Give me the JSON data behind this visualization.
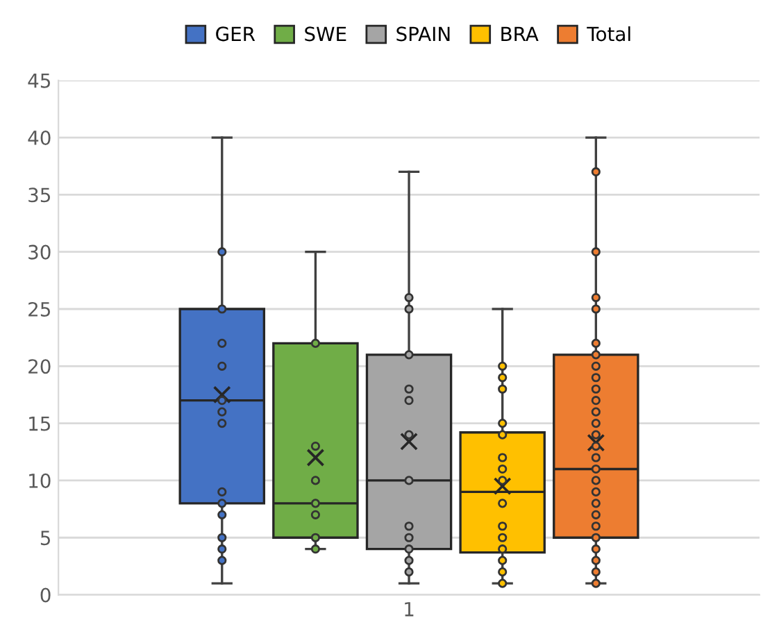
{
  "chart_data": {
    "type": "box",
    "categories": [
      "1"
    ],
    "ylim": [
      0,
      45
    ],
    "yticks": [
      0,
      5,
      10,
      15,
      20,
      25,
      30,
      35,
      40,
      45
    ],
    "grid": "y",
    "legend": "top",
    "marker": "circle",
    "series": [
      {
        "name": "GER",
        "color": "#4472c4",
        "boxes": [
          {
            "low": 1,
            "q1": 8,
            "median": 17,
            "q3": 25,
            "high": 40,
            "mean": 17.5,
            "outliers": [
              30,
              25,
              22,
              20,
              17,
              16,
              15,
              9,
              8,
              7,
              5,
              4,
              3
            ]
          }
        ]
      },
      {
        "name": "SWE",
        "color": "#70ad47",
        "boxes": [
          {
            "low": 4,
            "q1": 5,
            "median": 8,
            "q3": 22,
            "high": 30,
            "mean": 12,
            "outliers": [
              22,
              13,
              10,
              8,
              7,
              5,
              4
            ]
          }
        ]
      },
      {
        "name": "SPAIN",
        "color": "#a5a5a5",
        "boxes": [
          {
            "low": 1,
            "q1": 4,
            "median": 10,
            "q3": 21,
            "high": 37,
            "mean": 13.4,
            "outliers": [
              26,
              25,
              21,
              18,
              17,
              14,
              10,
              6,
              5,
              4,
              3,
              2
            ]
          }
        ]
      },
      {
        "name": "BRA",
        "color": "#ffc000",
        "boxes": [
          {
            "low": 1,
            "q1": 3.7,
            "median": 9,
            "q3": 14.2,
            "high": 25,
            "mean": 9.5,
            "outliers": [
              20,
              19,
              18,
              15,
              14,
              12,
              11,
              10,
              8,
              6,
              5,
              4,
              3,
              2,
              1
            ]
          }
        ]
      },
      {
        "name": "Total",
        "color": "#ed7d31",
        "boxes": [
          {
            "low": 1,
            "q1": 5,
            "median": 11,
            "q3": 21,
            "high": 40,
            "mean": 13.3,
            "outliers": [
              37,
              30,
              26,
              25,
              22,
              21,
              20,
              19,
              18,
              17,
              16,
              15,
              14,
              13,
              12,
              11,
              10,
              9,
              8,
              7,
              6,
              5,
              4,
              3,
              2,
              1
            ]
          }
        ]
      }
    ]
  }
}
